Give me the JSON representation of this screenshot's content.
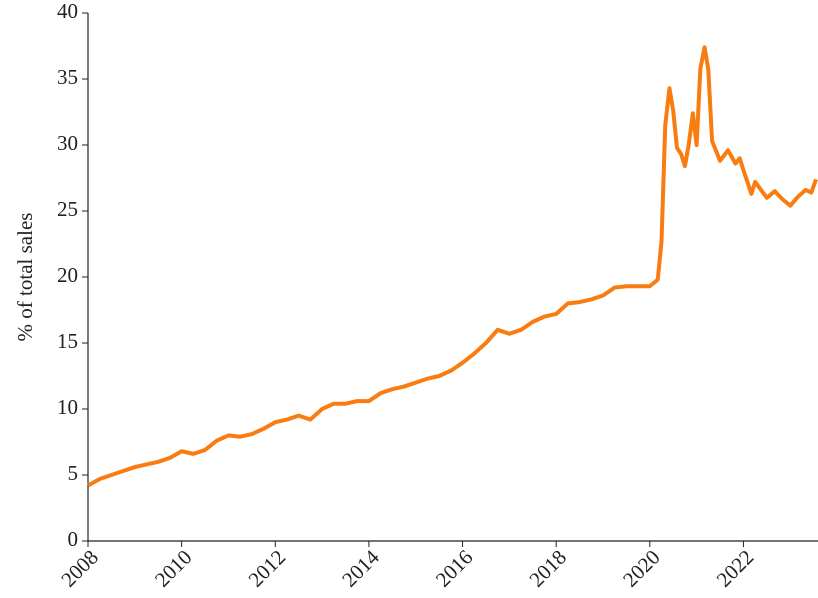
{
  "chart_data": {
    "type": "line",
    "y_label": "% of total sales",
    "x": [
      2008.0,
      2008.25,
      2008.5,
      2008.75,
      2009.0,
      2009.25,
      2009.5,
      2009.75,
      2010.0,
      2010.25,
      2010.5,
      2010.75,
      2011.0,
      2011.25,
      2011.5,
      2011.75,
      2012.0,
      2012.25,
      2012.5,
      2012.75,
      2013.0,
      2013.25,
      2013.5,
      2013.75,
      2014.0,
      2014.25,
      2014.5,
      2014.75,
      2015.0,
      2015.25,
      2015.5,
      2015.75,
      2016.0,
      2016.25,
      2016.5,
      2016.75,
      2017.0,
      2017.25,
      2017.5,
      2017.75,
      2018.0,
      2018.25,
      2018.5,
      2018.75,
      2019.0,
      2019.25,
      2019.5,
      2019.75,
      2020.0,
      2020.17,
      2020.25,
      2020.33,
      2020.42,
      2020.5,
      2020.58,
      2020.67,
      2020.75,
      2020.83,
      2020.92,
      2021.0,
      2021.08,
      2021.17,
      2021.25,
      2021.33,
      2021.5,
      2021.67,
      2021.83,
      2021.92,
      2022.0,
      2022.17,
      2022.25,
      2022.5,
      2022.67,
      2022.83,
      2023.0,
      2023.17,
      2023.33,
      2023.45,
      2023.55
    ],
    "series": [
      {
        "color": "#f97c10",
        "values": [
          4.2,
          4.7,
          5.0,
          5.3,
          5.6,
          5.8,
          6.0,
          6.3,
          6.8,
          6.6,
          6.9,
          7.6,
          8.0,
          7.9,
          8.1,
          8.5,
          9.0,
          9.2,
          9.5,
          9.2,
          10.0,
          10.4,
          10.4,
          10.6,
          10.6,
          11.2,
          11.5,
          11.7,
          12.0,
          12.3,
          12.5,
          12.9,
          13.5,
          14.2,
          15.0,
          16.0,
          15.7,
          16.0,
          16.6,
          17.0,
          17.2,
          18.0,
          18.1,
          18.3,
          18.6,
          19.2,
          19.3,
          19.3,
          19.3,
          19.8,
          22.7,
          31.5,
          34.3,
          32.6,
          29.8,
          29.3,
          28.4,
          30.0,
          32.4,
          30.0,
          35.8,
          37.4,
          35.7,
          30.3,
          28.8,
          29.6,
          28.6,
          29.0,
          28.1,
          26.3,
          27.2,
          26.0,
          26.5,
          25.9,
          25.4,
          26.1,
          26.6,
          26.4,
          27.4
        ]
      }
    ],
    "xlim": [
      2008,
      2023.55
    ],
    "xticks": [
      2008,
      2010,
      2012,
      2014,
      2016,
      2018,
      2020,
      2022
    ],
    "ylim": [
      0,
      40
    ],
    "yticks": [
      0,
      5,
      10,
      15,
      20,
      25,
      30,
      35,
      40
    ],
    "grid": false
  }
}
